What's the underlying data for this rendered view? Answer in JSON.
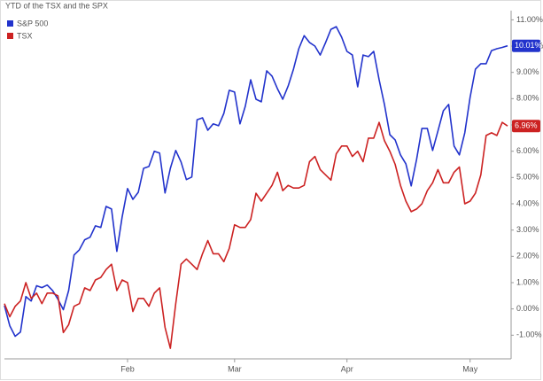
{
  "chart_data": {
    "type": "line",
    "title": "YTD of the TSX and the SPX",
    "categories": [
      null,
      null,
      null,
      null,
      null,
      null,
      null,
      null,
      null,
      null,
      null,
      null,
      null,
      null,
      null,
      null,
      null,
      null,
      null,
      null,
      null,
      null,
      null,
      "Feb",
      null,
      null,
      null,
      null,
      null,
      null,
      null,
      null,
      null,
      null,
      null,
      null,
      null,
      null,
      null,
      null,
      null,
      null,
      null,
      "Mar",
      null,
      null,
      null,
      null,
      null,
      null,
      null,
      null,
      null,
      null,
      null,
      null,
      null,
      null,
      null,
      null,
      null,
      null,
      null,
      null,
      "Apr",
      null,
      null,
      null,
      null,
      null,
      null,
      null,
      null,
      null,
      null,
      null,
      null,
      null,
      null,
      null,
      null,
      null,
      null,
      null,
      null,
      null,
      null,
      "May",
      null,
      null,
      null,
      null,
      null,
      null,
      null
    ],
    "series": [
      {
        "name": "S&P 500",
        "color": "#2233cc",
        "values": [
          0.13,
          -0.64,
          -1.04,
          -0.88,
          0.47,
          0.3,
          0.88,
          0.81,
          0.91,
          0.7,
          0.37,
          -0.03,
          0.7,
          2.05,
          2.25,
          2.63,
          2.73,
          3.16,
          3.1,
          3.9,
          3.8,
          2.19,
          3.5,
          4.58,
          4.17,
          4.44,
          5.35,
          5.42,
          6.0,
          5.93,
          4.41,
          5.35,
          6.03,
          5.59,
          4.92,
          5.02,
          7.2,
          7.27,
          6.8,
          7.04,
          6.97,
          7.44,
          8.32,
          8.25,
          7.04,
          7.71,
          8.72,
          7.98,
          7.88,
          9.06,
          8.86,
          8.38,
          7.98,
          8.48,
          9.12,
          9.9,
          10.4,
          10.14,
          10.0,
          9.66,
          10.14,
          10.64,
          10.74,
          10.34,
          9.8,
          9.66,
          8.45,
          9.66,
          9.6,
          9.8,
          8.72,
          7.78,
          6.63,
          6.43,
          5.86,
          5.52,
          4.68,
          5.69,
          6.87,
          6.87,
          6.03,
          6.77,
          7.54,
          7.78,
          6.2,
          5.86,
          6.7,
          8.05,
          9.12,
          9.33,
          9.33,
          9.83,
          9.9,
          9.95,
          10.01
        ],
        "value_labels": [
          null,
          null,
          null,
          null,
          null,
          null,
          null,
          null,
          null,
          null,
          null,
          null,
          null,
          null,
          null,
          null,
          null,
          null,
          null,
          null,
          null,
          null,
          null,
          null,
          null,
          null,
          null,
          null,
          null,
          null,
          null,
          null,
          null,
          null,
          null,
          null,
          null,
          null,
          null,
          null,
          null,
          null,
          null,
          null,
          null,
          null,
          null,
          null,
          null,
          null,
          null,
          null,
          null,
          null,
          null,
          null,
          null,
          null,
          null,
          null,
          null,
          null,
          null,
          null,
          null,
          null,
          null,
          null,
          null,
          null,
          null,
          null,
          null,
          null,
          null,
          null,
          null,
          null,
          null,
          null,
          null,
          null,
          null,
          null,
          null,
          null,
          null,
          null,
          null,
          null,
          null,
          null,
          null,
          null,
          "10.01%"
        ]
      },
      {
        "name": "TSX",
        "color": "#cc2222",
        "values": [
          0.2,
          -0.3,
          0.1,
          0.3,
          1.0,
          0.4,
          0.6,
          0.2,
          0.6,
          0.6,
          0.5,
          -0.9,
          -0.6,
          0.1,
          0.2,
          0.8,
          0.7,
          1.1,
          1.2,
          1.5,
          1.7,
          0.7,
          1.1,
          1.0,
          -0.1,
          0.4,
          0.4,
          0.1,
          0.6,
          0.8,
          -0.7,
          -1.5,
          0.2,
          1.7,
          1.9,
          1.7,
          1.5,
          2.1,
          2.6,
          2.1,
          2.1,
          1.8,
          2.3,
          3.2,
          3.1,
          3.1,
          3.4,
          4.4,
          4.1,
          4.4,
          4.7,
          5.2,
          4.5,
          4.7,
          4.6,
          4.6,
          4.7,
          5.6,
          5.8,
          5.3,
          5.1,
          4.9,
          5.9,
          6.2,
          6.2,
          5.8,
          6.0,
          5.6,
          6.5,
          6.5,
          7.1,
          6.4,
          6.0,
          5.5,
          4.7,
          4.1,
          3.7,
          3.8,
          4.0,
          4.5,
          4.8,
          5.3,
          4.8,
          4.8,
          5.2,
          5.4,
          4.0,
          4.1,
          4.4,
          5.1,
          6.6,
          6.7,
          6.6,
          7.1,
          6.96
        ],
        "value_labels": [
          null,
          null,
          null,
          null,
          null,
          null,
          null,
          null,
          null,
          null,
          null,
          null,
          null,
          null,
          null,
          null,
          null,
          null,
          null,
          null,
          null,
          null,
          null,
          null,
          null,
          null,
          null,
          null,
          null,
          null,
          null,
          null,
          null,
          null,
          null,
          null,
          null,
          null,
          null,
          null,
          null,
          null,
          null,
          null,
          null,
          null,
          null,
          null,
          null,
          null,
          null,
          null,
          null,
          null,
          null,
          null,
          null,
          null,
          null,
          null,
          null,
          null,
          null,
          null,
          null,
          null,
          null,
          null,
          null,
          null,
          null,
          null,
          null,
          null,
          null,
          null,
          null,
          null,
          null,
          null,
          null,
          null,
          null,
          null,
          null,
          null,
          null,
          null,
          null,
          null,
          null,
          null,
          null,
          null,
          "6.96%"
        ]
      }
    ],
    "ylim": [
      -1.9,
      11.35
    ],
    "yticks": [
      {
        "value": -1,
        "label": "-1.00%"
      },
      {
        "value": 0,
        "label": "0.00%"
      },
      {
        "value": 1,
        "label": "1.00%"
      },
      {
        "value": 2,
        "label": "2.00%"
      },
      {
        "value": 3,
        "label": "3.00%"
      },
      {
        "value": 4,
        "label": "4.00%"
      },
      {
        "value": 5,
        "label": "5.00%"
      },
      {
        "value": 6,
        "label": "6.00%"
      },
      {
        "value": 7,
        "label": "7.00%"
      },
      {
        "value": 8,
        "label": "8.00%"
      },
      {
        "value": 9,
        "label": "9.00%"
      },
      {
        "value": 10,
        "label": "10.00%"
      },
      {
        "value": 11,
        "label": "11.00%"
      }
    ],
    "legend": "top-left"
  }
}
